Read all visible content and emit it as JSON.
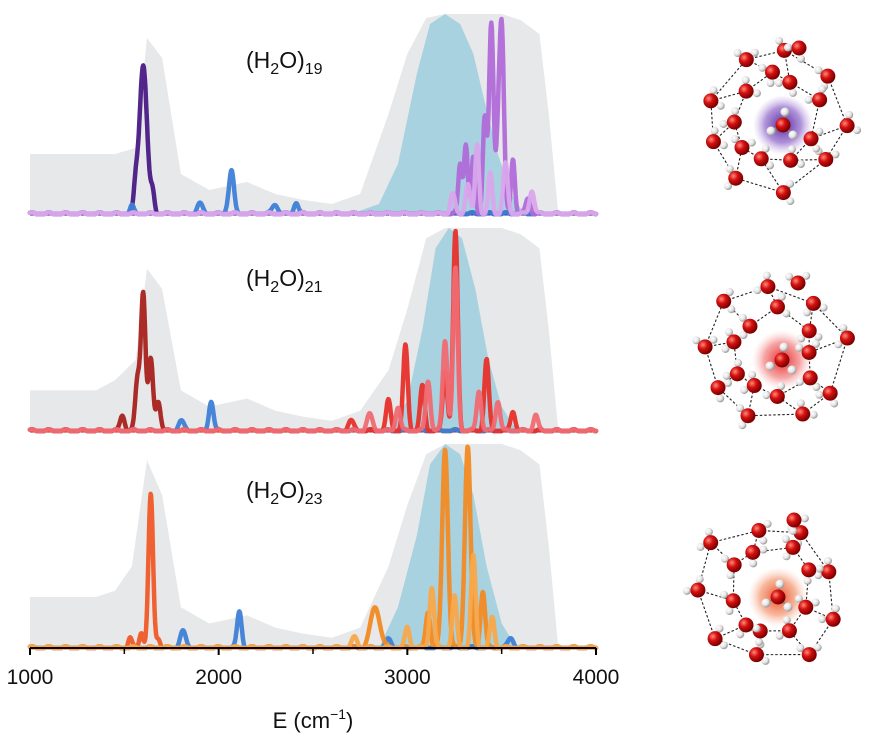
{
  "chart_data": {
    "type": "line",
    "x_axis": {
      "label_prefix": "E (cm",
      "label_exponent": "−1",
      "label_suffix": ")",
      "range": [
        1000,
        4000
      ],
      "ticks": [
        1000,
        2000,
        3000,
        4000
      ],
      "minor_ticks": [
        1500,
        2500,
        3500
      ]
    },
    "panels": [
      {
        "title_prefix": "(H",
        "title_sub1": "2",
        "title_mid": "O)",
        "title_sub2": "19",
        "ion_color": "#5a2a9a",
        "background_bands": [
          {
            "x": [
              1000,
              1350,
              1450,
              1560,
              1620,
              1700,
              1800,
              1950,
              2150,
              2300,
              2450,
              2600,
              2750,
              2900,
              3000,
              3100,
              3200,
              3300,
              3400,
              3500,
              3600,
              3700,
              3750,
              3800
            ],
            "y": [
              0.3,
              0.3,
              0.3,
              0.33,
              0.88,
              0.78,
              0.2,
              0.12,
              0.16,
              0.1,
              0.07,
              0.05,
              0.1,
              0.5,
              0.8,
              0.98,
              1.0,
              1.0,
              1.0,
              1.0,
              0.97,
              0.9,
              0.5,
              0.0
            ],
            "color": "#e6e8e9"
          },
          {
            "x": [
              2700,
              2850,
              2950,
              3050,
              3120,
              3200,
              3280,
              3350,
              3400,
              3480,
              3550,
              3600,
              3650
            ],
            "y": [
              0.0,
              0.05,
              0.25,
              0.7,
              0.95,
              1.0,
              0.95,
              0.8,
              0.6,
              0.3,
              0.1,
              0.03,
              0.0
            ],
            "color": "#a8d2e0"
          }
        ],
        "series": [
          {
            "color": "#4a1a85",
            "peaks": [
              [
                1560,
                0.12,
                10
              ],
              [
                1600,
                0.75,
                20
              ],
              [
                1650,
                0.1,
                10
              ]
            ]
          },
          {
            "color": "#3d7fd6",
            "peaks": [
              [
                1540,
                0.04,
                10
              ],
              [
                1900,
                0.05,
                15
              ],
              [
                2060,
                0.08,
                15
              ],
              [
                2070,
                0.15,
                12
              ],
              [
                2300,
                0.05,
                15
              ],
              [
                2410,
                0.06,
                12
              ]
            ]
          },
          {
            "color": "#b06ad8",
            "peaks": [
              [
                3280,
                0.25,
                10
              ],
              [
                3310,
                0.35,
                10
              ],
              [
                3350,
                0.28,
                10
              ],
              [
                3410,
                0.48,
                10
              ],
              [
                3445,
                0.95,
                12
              ],
              [
                3480,
                0.3,
                10
              ],
              [
                3500,
                0.93,
                12
              ],
              [
                3560,
                0.28,
                10
              ],
              [
                3640,
                0.08,
                12
              ]
            ]
          },
          {
            "color": "#d9a6ec",
            "peaks": [
              [
                3240,
                0.1,
                12
              ],
              [
                3320,
                0.15,
                12
              ],
              [
                3370,
                0.35,
                10
              ],
              [
                3440,
                0.2,
                10
              ],
              [
                3520,
                0.25,
                12
              ],
              [
                3660,
                0.12,
                12
              ]
            ]
          }
        ]
      },
      {
        "title_prefix": "(H",
        "title_sub1": "2",
        "title_mid": "O)",
        "title_sub2": "21",
        "ion_color": "#e23030",
        "background_bands": [
          {
            "x": [
              1000,
              1350,
              1450,
              1560,
              1620,
              1700,
              1800,
              1950,
              2150,
              2300,
              2450,
              2600,
              2750,
              2900,
              3000,
              3100,
              3200,
              3300,
              3400,
              3500,
              3600,
              3700,
              3750,
              3800
            ],
            "y": [
              0.2,
              0.2,
              0.25,
              0.35,
              0.8,
              0.7,
              0.2,
              0.12,
              0.16,
              0.1,
              0.07,
              0.05,
              0.1,
              0.3,
              0.6,
              0.95,
              1.0,
              1.0,
              1.0,
              1.0,
              0.97,
              0.9,
              0.5,
              0.0
            ],
            "color": "#e6e8e9"
          },
          {
            "x": [
              2900,
              3000,
              3080,
              3150,
              3220,
              3290,
              3360,
              3430,
              3500,
              3560,
              3600
            ],
            "y": [
              0.0,
              0.15,
              0.5,
              0.9,
              1.0,
              0.95,
              0.7,
              0.35,
              0.12,
              0.03,
              0.0
            ],
            "color": "#a8d2e0"
          }
        ],
        "series": [
          {
            "color": "#a8221c",
            "peaks": [
              [
                1490,
                0.08,
                12
              ],
              [
                1570,
                0.25,
                12
              ],
              [
                1600,
                0.68,
                12
              ],
              [
                1640,
                0.35,
                12
              ],
              [
                1680,
                0.15,
                12
              ]
            ]
          },
          {
            "color": "#3d7fd6",
            "peaks": [
              [
                1800,
                0.05,
                15
              ],
              [
                1960,
                0.15,
                12
              ]
            ]
          },
          {
            "color": "#e8302a",
            "peaks": [
              [
                2700,
                0.05,
                15
              ],
              [
                2900,
                0.15,
                12
              ],
              [
                2990,
                0.42,
                12
              ],
              [
                3080,
                0.22,
                12
              ],
              [
                3200,
                0.3,
                12
              ],
              [
                3255,
                0.98,
                12
              ],
              [
                3420,
                0.35,
                12
              ],
              [
                3560,
                0.1,
                12
              ]
            ]
          },
          {
            "color": "#f06a72",
            "peaks": [
              [
                2800,
                0.08,
                15
              ],
              [
                2950,
                0.12,
                12
              ],
              [
                3110,
                0.25,
                12
              ],
              [
                3200,
                0.45,
                12
              ],
              [
                3255,
                0.8,
                12
              ],
              [
                3380,
                0.2,
                12
              ],
              [
                3480,
                0.15,
                12
              ],
              [
                3680,
                0.08,
                12
              ]
            ]
          }
        ]
      },
      {
        "title_prefix": "(H",
        "title_sub1": "2",
        "title_mid": "O)",
        "title_sub2": "23",
        "ion_color": "#e4572a",
        "background_bands": [
          {
            "x": [
              1000,
              1350,
              1450,
              1540,
              1620,
              1700,
              1800,
              1950,
              2150,
              2300,
              2450,
              2600,
              2750,
              2900,
              3000,
              3100,
              3200,
              3300,
              3400,
              3500,
              3600,
              3700,
              3750,
              3800
            ],
            "y": [
              0.25,
              0.25,
              0.28,
              0.4,
              0.92,
              0.75,
              0.2,
              0.12,
              0.16,
              0.1,
              0.07,
              0.05,
              0.1,
              0.4,
              0.7,
              0.95,
              1.0,
              1.0,
              1.0,
              1.0,
              0.97,
              0.9,
              0.5,
              0.0
            ],
            "color": "#e6e8e9"
          },
          {
            "x": [
              2850,
              2950,
              3050,
              3120,
              3200,
              3280,
              3350,
              3420,
              3500,
              3560,
              3600
            ],
            "y": [
              0.0,
              0.2,
              0.55,
              0.9,
              1.0,
              0.95,
              0.75,
              0.4,
              0.12,
              0.03,
              0.0
            ],
            "color": "#a8d2e0"
          }
        ],
        "series": [
          {
            "color": "#f05a28",
            "peaks": [
              [
                1530,
                0.05,
                10
              ],
              [
                1590,
                0.08,
                10
              ],
              [
                1640,
                0.75,
                12
              ],
              [
                1680,
                0.05,
                10
              ]
            ]
          },
          {
            "color": "#3d7fd6",
            "peaks": [
              [
                1810,
                0.08,
                15
              ],
              [
                2110,
                0.18,
                12
              ],
              [
                2900,
                0.04,
                15
              ],
              [
                3550,
                0.05,
                15
              ]
            ]
          },
          {
            "color": "#f28a22",
            "peaks": [
              [
                2830,
                0.2,
                25
              ],
              [
                3110,
                0.18,
                12
              ],
              [
                3200,
                0.98,
                15
              ],
              [
                3320,
                0.99,
                15
              ],
              [
                3400,
                0.28,
                12
              ]
            ]
          },
          {
            "color": "#f7a84a",
            "peaks": [
              [
                2720,
                0.05,
                15
              ],
              [
                3000,
                0.1,
                12
              ],
              [
                3130,
                0.3,
                12
              ],
              [
                3250,
                0.25,
                12
              ],
              [
                3350,
                0.45,
                12
              ],
              [
                3450,
                0.15,
                12
              ]
            ]
          }
        ]
      }
    ]
  }
}
